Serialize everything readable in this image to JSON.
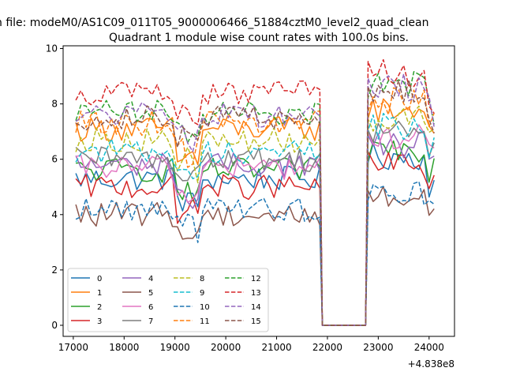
{
  "chart_data": {
    "type": "line",
    "suptitle": "n file: modeM0/AS1C09_011T05_9000006466_51884cztM0_level2_quad_clean",
    "title": "Quadrant 1 module wise count rates with 100.0s bins.",
    "xlabel": "",
    "ylabel": "",
    "x_offset_label": "+4.838e8",
    "xlim": [
      16800,
      24500
    ],
    "ylim": [
      -0.4,
      10.1
    ],
    "xticks": [
      17000,
      18000,
      19000,
      20000,
      21000,
      22000,
      23000,
      24000
    ],
    "xtick_labels": [
      "17000",
      "18000",
      "19000",
      "20000",
      "21000",
      "22000",
      "23000",
      "24000"
    ],
    "yticks": [
      0,
      2,
      4,
      6,
      8,
      10
    ],
    "ytick_labels": [
      "0",
      "2",
      "4",
      "6",
      "8",
      "10"
    ],
    "grid": false,
    "legend": {
      "placement": "lower-left",
      "columns": 4
    },
    "bin_seconds": 100,
    "gap": {
      "start": 21900,
      "end": 22750,
      "value": 0
    },
    "segments": [
      [
        17050,
        21850
      ],
      [
        22800,
        24150
      ]
    ],
    "dip": {
      "start": 19050,
      "end": 19450
    },
    "series": [
      {
        "name": "0",
        "color": "#1f77b4",
        "style": "solid",
        "pre": 5.3,
        "post": 6.1
      },
      {
        "name": "1",
        "color": "#ff7f0e",
        "style": "solid",
        "pre": 7.1,
        "post": 7.8
      },
      {
        "name": "2",
        "color": "#2ca02c",
        "style": "solid",
        "pre": 5.6,
        "post": 6.4
      },
      {
        "name": "3",
        "color": "#d62728",
        "style": "solid",
        "pre": 5.0,
        "post": 5.8
      },
      {
        "name": "4",
        "color": "#9467bd",
        "style": "solid",
        "pre": 5.8,
        "post": 6.5
      },
      {
        "name": "5",
        "color": "#8c564b",
        "style": "solid",
        "pre": 4.0,
        "post": 4.6
      },
      {
        "name": "6",
        "color": "#e377c2",
        "style": "solid",
        "pre": 5.7,
        "post": 6.8
      },
      {
        "name": "7",
        "color": "#7f7f7f",
        "style": "solid",
        "pre": 6.0,
        "post": 7.0
      },
      {
        "name": "8",
        "color": "#bcbd22",
        "style": "dashed",
        "pre": 6.7,
        "post": 7.5
      },
      {
        "name": "9",
        "color": "#17becf",
        "style": "dashed",
        "pre": 6.3,
        "post": 7.2
      },
      {
        "name": "10",
        "color": "#1f77b4",
        "style": "dashed",
        "pre": 4.2,
        "post": 4.8
      },
      {
        "name": "11",
        "color": "#ff7f0e",
        "style": "dashed",
        "pre": 7.3,
        "post": 8.1
      },
      {
        "name": "12",
        "color": "#2ca02c",
        "style": "dashed",
        "pre": 7.7,
        "post": 8.7
      },
      {
        "name": "13",
        "color": "#d62728",
        "style": "dashed",
        "pre": 8.4,
        "post": 9.1
      },
      {
        "name": "14",
        "color": "#9467bd",
        "style": "dashed",
        "pre": 7.6,
        "post": 8.6
      },
      {
        "name": "15",
        "color": "#8c564b",
        "style": "dashed",
        "pre": 7.5,
        "post": 8.4
      }
    ]
  }
}
